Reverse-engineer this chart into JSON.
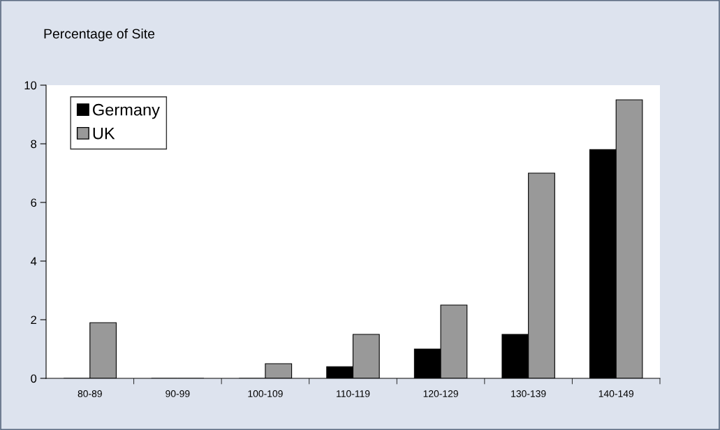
{
  "chart_data": {
    "type": "bar",
    "title": "Percentage of Site",
    "categories": [
      "80-89",
      "90-99",
      "100-109",
      "110-119",
      "120-129",
      "130-139",
      "140-149"
    ],
    "series": [
      {
        "name": "Germany",
        "color": "#000000",
        "values": [
          0,
          0,
          0,
          0.4,
          1.0,
          1.5,
          7.8
        ]
      },
      {
        "name": "UK",
        "color": "#999999",
        "values": [
          1.9,
          0,
          0.5,
          1.5,
          2.5,
          7.0,
          9.5
        ]
      }
    ],
    "ylim": [
      0,
      10
    ],
    "yticks": [
      0,
      2,
      4,
      6,
      8,
      10
    ],
    "grid": false,
    "legend": "top left"
  }
}
